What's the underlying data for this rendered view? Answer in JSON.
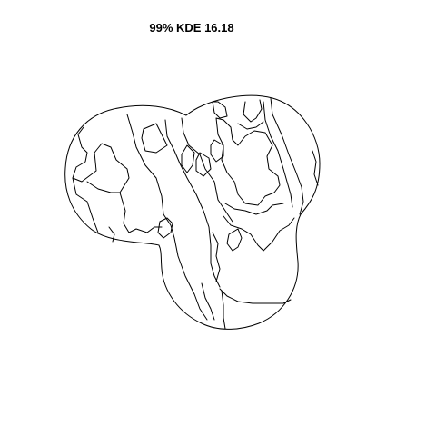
{
  "plot": {
    "title": "99% KDE 16.18"
  },
  "colors": {
    "background": "#ffffff",
    "stroke": "#000000"
  }
}
